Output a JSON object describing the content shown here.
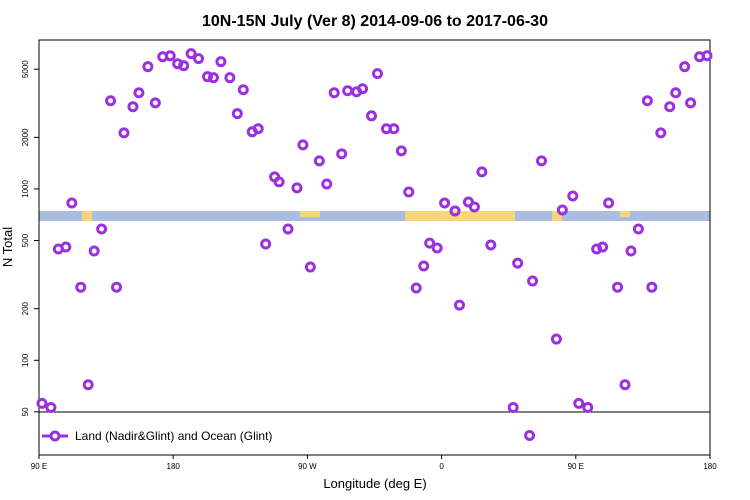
{
  "chart_data": {
    "type": "scatter",
    "title": "10N-15N July (Ver 8)   2014-09-06 to 2017-06-30",
    "xlabel": "Longitude (deg E)",
    "ylabel": "N Total",
    "log_y": true,
    "xlim": [
      90,
      540
    ],
    "ylim": [
      28,
      7400
    ],
    "xticks": [
      {
        "value": 90,
        "label": "90 E"
      },
      {
        "value": 180,
        "label": "180"
      },
      {
        "value": 270,
        "label": "90 W"
      },
      {
        "value": 360,
        "label": "0"
      },
      {
        "value": 450,
        "label": "90 E"
      },
      {
        "value": 540,
        "label": "180"
      }
    ],
    "yticks": [
      50,
      100,
      200,
      500,
      1000,
      2000,
      5000
    ],
    "legend": "bottom-left",
    "series": [
      {
        "name": "Land (Nadir&Glint) and Ocean (Glint)",
        "color": "#9b30e0",
        "x": [
          92,
          98,
          103,
          108,
          112,
          118,
          123,
          127,
          132,
          138,
          142,
          147,
          153,
          157,
          163,
          168,
          173,
          178,
          183,
          187,
          192,
          197,
          203,
          207,
          212,
          218,
          223,
          227,
          233,
          237,
          242,
          248,
          251,
          257,
          263,
          267,
          272,
          278,
          283,
          288,
          293,
          297,
          303,
          307,
          313,
          317,
          323,
          328,
          333,
          338,
          343,
          348,
          352,
          357,
          362,
          369,
          372,
          378,
          382,
          387,
          393,
          408,
          411,
          419,
          421,
          427,
          437,
          441,
          448,
          452,
          458,
          464,
          468,
          472,
          478,
          483,
          487,
          492,
          498,
          501,
          507,
          513,
          517,
          523,
          527,
          533,
          538
        ],
        "values": [
          56,
          53,
          446,
          458,
          828,
          267,
          72,
          434,
          584,
          3270,
          267,
          2125,
          3020,
          3640,
          5170,
          3180,
          5910,
          5990,
          5380,
          5240,
          6160,
          5760,
          4520,
          4460,
          5530,
          4460,
          2750,
          3790,
          2155,
          2245,
          477,
          1175,
          1099,
          584,
          1014,
          1807,
          350,
          1458,
          1069,
          3640,
          1603,
          3740,
          3690,
          3845,
          2672,
          4710,
          2245,
          2245,
          1668,
          960,
          264,
          355,
          483,
          452,
          828,
          744,
          210,
          839,
          785,
          1257,
          471,
          53,
          369,
          36.4,
          290,
          1458,
          133,
          753,
          910,
          56,
          53,
          446,
          458,
          828,
          267,
          72,
          434,
          584,
          3270,
          267,
          2125,
          3020,
          3640,
          5170,
          3180,
          5910,
          5990
        ]
      }
    ]
  }
}
